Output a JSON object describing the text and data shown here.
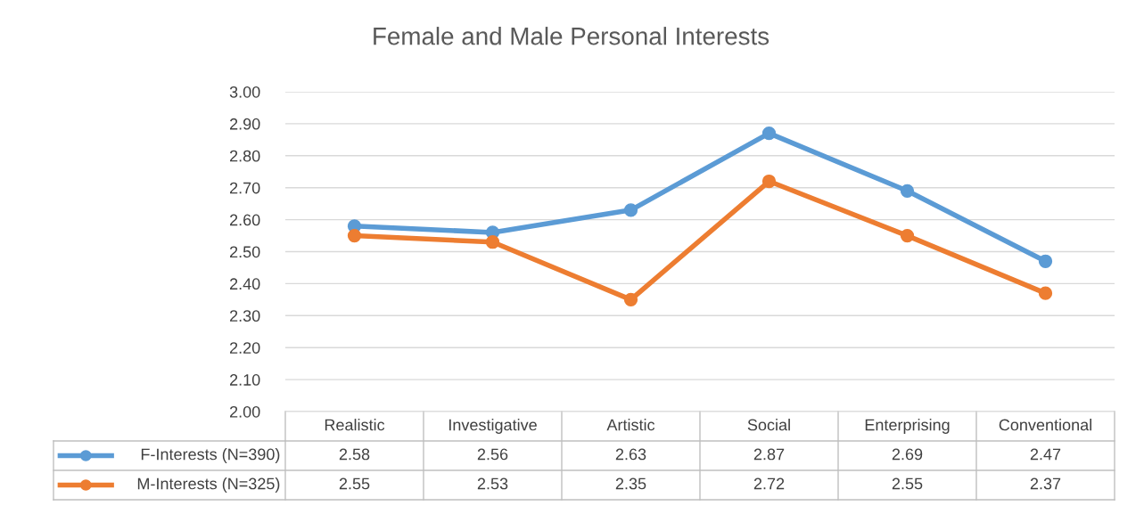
{
  "chart_data": {
    "type": "line",
    "title": "Female and Male Personal Interests",
    "categories": [
      "Realistic",
      "Investigative",
      "Artistic",
      "Social",
      "Enterprising",
      "Conventional"
    ],
    "series": [
      {
        "name": "F-Interests (N=390)",
        "color": "#5b9bd5",
        "values": [
          2.58,
          2.56,
          2.63,
          2.87,
          2.69,
          2.47
        ]
      },
      {
        "name": "M-Interests (N=325)",
        "color": "#ed7d31",
        "values": [
          2.55,
          2.53,
          2.35,
          2.72,
          2.55,
          2.37
        ]
      }
    ],
    "ylim": [
      2.0,
      3.0
    ],
    "yticks": [
      {
        "value": 2.0,
        "label": "2.00"
      },
      {
        "value": 2.1,
        "label": "2.10"
      },
      {
        "value": 2.2,
        "label": "2.20"
      },
      {
        "value": 2.3,
        "label": "2.30"
      },
      {
        "value": 2.4,
        "label": "2.40"
      },
      {
        "value": 2.5,
        "label": "2.50"
      },
      {
        "value": 2.6,
        "label": "2.60"
      },
      {
        "value": 2.7,
        "label": "2.70"
      },
      {
        "value": 2.8,
        "label": "2.80"
      },
      {
        "value": 2.9,
        "label": "2.90"
      },
      {
        "value": 3.0,
        "label": "3.00"
      }
    ],
    "grid": "y",
    "legend": "bottom left",
    "marker": "circle",
    "line_style": "solid",
    "data_labels": true
  }
}
